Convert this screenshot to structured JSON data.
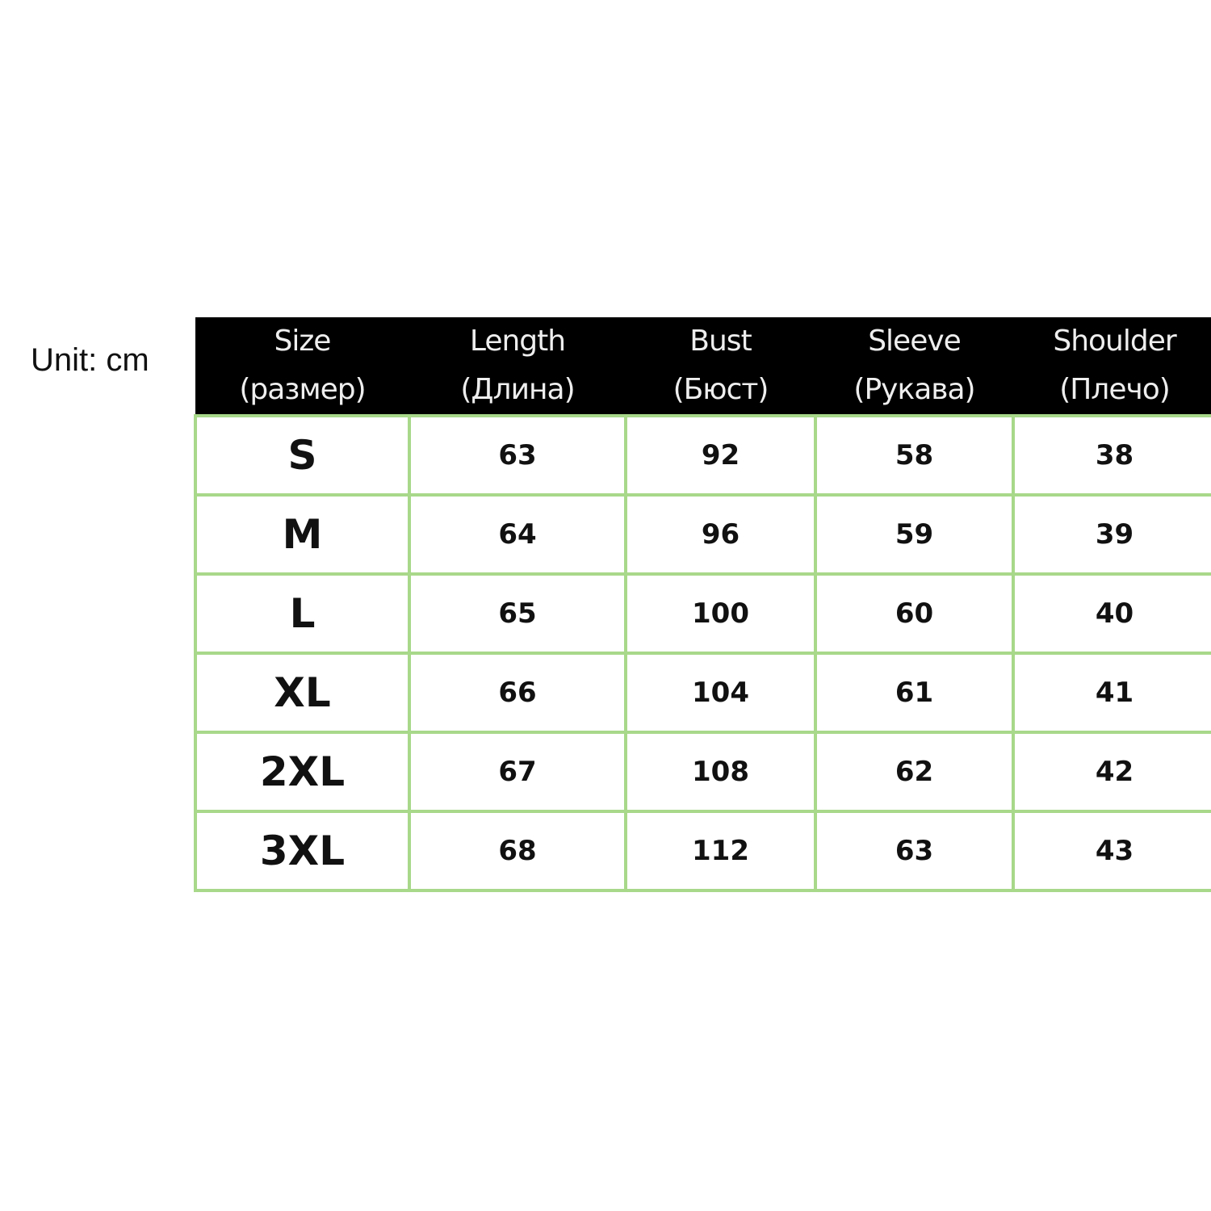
{
  "unit_label": "Unit: cm",
  "colors": {
    "header_bg": "#000000",
    "grid": "#a8d88a"
  },
  "table": {
    "headers": [
      {
        "en": "Size",
        "ru": "(размер)"
      },
      {
        "en": "Length",
        "ru": "(Длина)"
      },
      {
        "en": "Bust",
        "ru": "(Бюст)"
      },
      {
        "en": "Sleeve",
        "ru": "(Рукава)"
      },
      {
        "en": "Shoulder",
        "ru": "(Плечо)"
      }
    ],
    "rows": [
      [
        "S",
        "63",
        "92",
        "58",
        "38"
      ],
      [
        "M",
        "64",
        "96",
        "59",
        "39"
      ],
      [
        "L",
        "65",
        "100",
        "60",
        "40"
      ],
      [
        "XL",
        "66",
        "104",
        "61",
        "41"
      ],
      [
        "2XL",
        "67",
        "108",
        "62",
        "42"
      ],
      [
        "3XL",
        "68",
        "112",
        "63",
        "43"
      ]
    ]
  }
}
